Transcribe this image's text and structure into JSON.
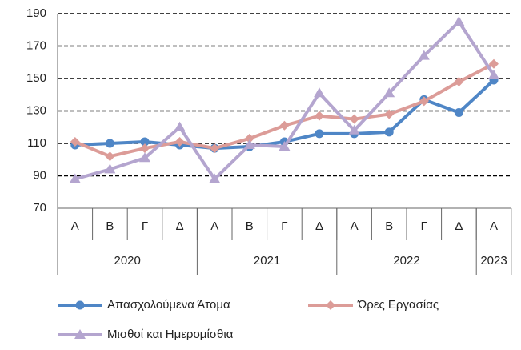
{
  "chart_data": {
    "type": "line",
    "category_groups": [
      {
        "label": "2020",
        "categories": [
          "Α",
          "Β",
          "Γ",
          "Δ"
        ]
      },
      {
        "label": "2021",
        "categories": [
          "Α",
          "Β",
          "Γ",
          "Δ"
        ]
      },
      {
        "label": "2022",
        "categories": [
          "Α",
          "Β",
          "Γ",
          "Δ"
        ]
      },
      {
        "label": "2023",
        "categories": [
          "Α"
        ]
      }
    ],
    "series": [
      {
        "name": "Απασχολούμενα Άτομα",
        "color": "#4f86c6",
        "marker": "circle",
        "values": [
          109,
          110,
          111,
          109,
          107,
          108,
          111,
          116,
          116,
          117,
          137,
          129,
          149
        ]
      },
      {
        "name": "Ώρες Εργασίας",
        "color": "#dc9c98",
        "marker": "diamond",
        "values": [
          111,
          102,
          107,
          111,
          107,
          113,
          121,
          127,
          125,
          128,
          136,
          148,
          159
        ]
      },
      {
        "name": "Μισθοί και Ημερομίσθια",
        "color": "#b4a5cf",
        "marker": "triangle",
        "values": [
          88,
          94,
          101,
          120,
          88,
          109,
          108,
          141,
          118,
          141,
          164,
          185,
          152
        ]
      }
    ],
    "ylim": [
      70,
      190
    ],
    "yticks": [
      70,
      90,
      110,
      130,
      150,
      170,
      190
    ],
    "grid": true
  }
}
